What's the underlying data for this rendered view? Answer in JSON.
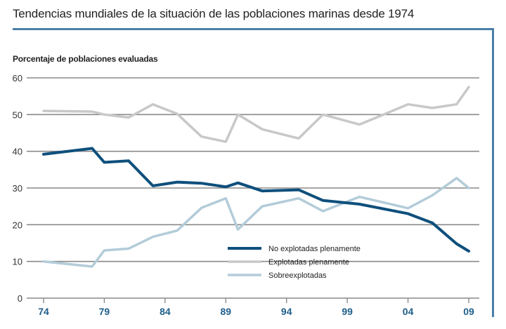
{
  "chart_data": {
    "type": "line",
    "title": "Tendencias mundiales de la situación de las poblaciones marinas desde 1974",
    "ylabel": "Porcentaje de poblaciones evaluadas",
    "xlabel": "",
    "ylim": [
      0,
      60
    ],
    "xlim": [
      1974,
      2009
    ],
    "yticks": [
      0,
      10,
      20,
      30,
      40,
      50,
      60
    ],
    "xticks": [
      {
        "year": 1974,
        "label": "74"
      },
      {
        "year": 1979,
        "label": "79"
      },
      {
        "year": 1984,
        "label": "84"
      },
      {
        "year": 1989,
        "label": "89"
      },
      {
        "year": 1994,
        "label": "94"
      },
      {
        "year": 1999,
        "label": "99"
      },
      {
        "year": 2004,
        "label": "04"
      },
      {
        "year": 2009,
        "label": "09"
      }
    ],
    "grid": true,
    "legend_position": "bottom-center",
    "series": [
      {
        "name": "No explotadas plenamente",
        "color": "#0e4f7c",
        "x": [
          1974,
          1977,
          1978,
          1979,
          1981,
          1983,
          1985,
          1987,
          1989,
          1990,
          1992,
          1995,
          1997,
          2000,
          2004,
          2006,
          2008,
          2009
        ],
        "values": [
          39.2,
          40.4,
          40.8,
          37.0,
          37.4,
          30.6,
          31.6,
          31.3,
          30.3,
          31.4,
          29.2,
          29.5,
          26.6,
          25.6,
          23.0,
          20.5,
          14.8,
          12.8
        ]
      },
      {
        "name": "Explotadas plenamente",
        "color": "#c8c8c8",
        "x": [
          1974,
          1978,
          1979,
          1981,
          1983,
          1985,
          1987,
          1989,
          1990,
          1992,
          1995,
          1997,
          2000,
          2002,
          2004,
          2006,
          2008,
          2009
        ],
        "values": [
          51.0,
          50.8,
          50.0,
          49.2,
          52.8,
          50.2,
          44.0,
          42.6,
          50.0,
          46.0,
          43.5,
          50.0,
          47.3,
          50.0,
          52.8,
          51.8,
          52.8,
          57.5
        ]
      },
      {
        "name": "Sobreexplotadas",
        "color": "#b3ccd9",
        "x": [
          1974,
          1978,
          1979,
          1981,
          1983,
          1985,
          1987,
          1989,
          1990,
          1992,
          1995,
          1997,
          2000,
          2004,
          2006,
          2008,
          2009
        ],
        "values": [
          10.0,
          8.6,
          13.0,
          13.5,
          16.7,
          18.4,
          24.6,
          27.2,
          18.7,
          25.0,
          27.2,
          23.7,
          27.6,
          24.5,
          28.0,
          32.7,
          30.0
        ]
      }
    ]
  }
}
